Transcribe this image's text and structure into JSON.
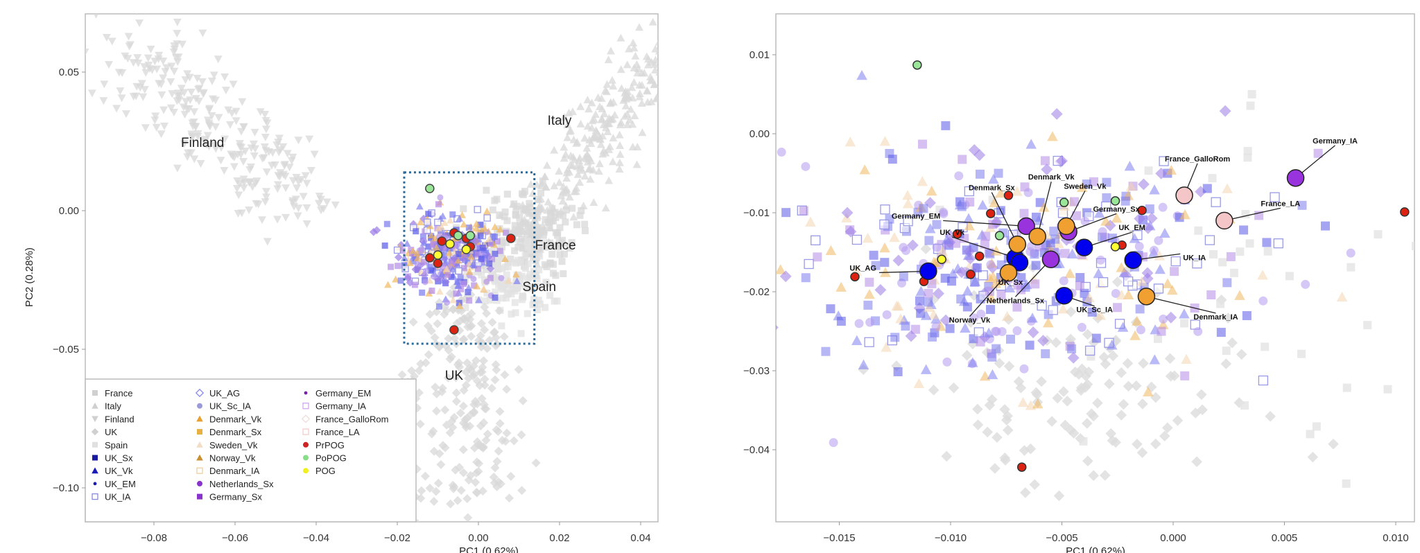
{
  "chart_data": [
    {
      "type": "scatter",
      "panel": "full",
      "xlabel": "PC1 (0.62%)",
      "ylabel": "PC2 (0.28%)",
      "xlim": [
        -0.097,
        0.045
      ],
      "ylim": [
        -0.112,
        0.071
      ],
      "xticks": [
        "-0.08",
        "-0.06",
        "-0.04",
        "-0.02",
        "0.00",
        "0.02",
        "0.04"
      ],
      "xtick_values": [
        -0.08,
        -0.06,
        -0.04,
        -0.02,
        0.0,
        0.02,
        0.04
      ],
      "yticks": [
        "0.05",
        "0.00",
        "-0.05",
        "-0.10"
      ],
      "ytick_values": [
        0.05,
        0.0,
        -0.05,
        -0.1
      ],
      "region_labels": [
        {
          "text": "Finland",
          "x": -0.068,
          "y": 0.023
        },
        {
          "text": "Italy",
          "x": 0.02,
          "y": 0.031
        },
        {
          "text": "France",
          "x": 0.019,
          "y": -0.014
        },
        {
          "text": "Spain",
          "x": 0.015,
          "y": -0.029
        },
        {
          "text": "UK",
          "x": -0.006,
          "y": -0.061
        }
      ],
      "zoom_box": {
        "x": [
          -0.0183,
          0.0138
        ],
        "y": [
          -0.048,
          0.0138
        ]
      },
      "legend": {
        "placement": "bottom-left",
        "entries": [
          {
            "label": "France",
            "shape": "square",
            "color": "#d0d0d0"
          },
          {
            "label": "Italy",
            "shape": "triangle",
            "color": "#d0d0d0"
          },
          {
            "label": "Finland",
            "shape": "triangle-down",
            "color": "#d0d0d0"
          },
          {
            "label": "UK",
            "shape": "diamond",
            "color": "#d0d0d0"
          },
          {
            "label": "Spain",
            "shape": "square",
            "color": "#e0e0e0"
          },
          {
            "label": "UK_Sx",
            "shape": "square",
            "color": "#1a1aa0"
          },
          {
            "label": "UK_Vk",
            "shape": "triangle",
            "color": "#1a1ab4"
          },
          {
            "label": "UK_EM",
            "shape": "dot",
            "color": "#1a1ab4"
          },
          {
            "label": "UK_IA",
            "shape": "open-square",
            "color": "#8888dd"
          },
          {
            "label": "UK_AG",
            "shape": "open-diamond",
            "color": "#8a8aee"
          },
          {
            "label": "UK_Sc_IA",
            "shape": "circle",
            "color": "#9a9ad8"
          },
          {
            "label": "Denmark_Vk",
            "shape": "triangle",
            "color": "#e8a030"
          },
          {
            "label": "Denmark_Sx",
            "shape": "square",
            "color": "#e8b040"
          },
          {
            "label": "Sweden_Vk",
            "shape": "triangle",
            "color": "#f3dcc4"
          },
          {
            "label": "Norway_Vk",
            "shape": "triangle",
            "color": "#c89030"
          },
          {
            "label": "Denmark_IA",
            "shape": "open-square",
            "color": "#efcfa0"
          },
          {
            "label": "Netherlands_Sx",
            "shape": "circle",
            "color": "#8833cc"
          },
          {
            "label": "Germany_Sx",
            "shape": "square",
            "color": "#8833cc"
          },
          {
            "label": "Germany_EM",
            "shape": "dot",
            "color": "#7722aa"
          },
          {
            "label": "Germany_IA",
            "shape": "open-square",
            "color": "#d3a8ee"
          },
          {
            "label": "France_GalloRom",
            "shape": "open-diamond",
            "color": "#f0dcdc"
          },
          {
            "label": "France_LA",
            "shape": "open-square",
            "color": "#f3cccc"
          },
          {
            "label": "PrPOG",
            "shape": "circle",
            "color": "#cc2222"
          },
          {
            "label": "PoPOG",
            "shape": "circle",
            "color": "#88dd88"
          },
          {
            "label": "POG",
            "shape": "circle",
            "color": "#f0f020"
          }
        ]
      },
      "highlight_points": {
        "PrPOG": [
          [
            -0.012,
            -0.017
          ],
          [
            -0.009,
            -0.011
          ],
          [
            -0.006,
            -0.008
          ],
          [
            -0.003,
            -0.01
          ],
          [
            0.008,
            -0.01
          ],
          [
            -0.006,
            -0.043
          ],
          [
            -0.01,
            -0.019
          ],
          [
            -0.002,
            -0.013
          ]
        ],
        "PoPOG": [
          [
            -0.012,
            0.008
          ],
          [
            -0.005,
            -0.009
          ],
          [
            -0.002,
            -0.009
          ]
        ],
        "POG": [
          [
            -0.01,
            -0.016
          ],
          [
            -0.003,
            -0.014
          ],
          [
            -0.007,
            -0.012
          ]
        ]
      }
    },
    {
      "type": "scatter",
      "panel": "zoom",
      "xlabel": "PC1 (0.62%)",
      "ylabel": "",
      "xlim": [
        -0.0178,
        0.0108
      ],
      "ylim": [
        -0.049,
        0.0152
      ],
      "xticks": [
        "-0.015",
        "-0.010",
        "-0.005",
        "0.000",
        "0.005",
        "0.010"
      ],
      "xtick_values": [
        -0.015,
        -0.01,
        -0.005,
        0.0,
        0.005,
        0.01
      ],
      "yticks": [
        "0.01",
        "0.00",
        "-0.01",
        "-0.02",
        "-0.03",
        "-0.04"
      ],
      "ytick_values": [
        0.01,
        0.0,
        -0.01,
        -0.02,
        -0.03,
        -0.04
      ],
      "group_means": [
        {
          "label": "UK_AG",
          "x": -0.011,
          "y": -0.0174,
          "color": "#0000ee"
        },
        {
          "label": "UK_Vk",
          "x": -0.0071,
          "y": -0.0157,
          "color": "#0000ee"
        },
        {
          "label": "UK_Sx",
          "x": -0.0069,
          "y": -0.0163,
          "color": "#0000ee"
        },
        {
          "label": "Norway_Vk",
          "x": -0.0074,
          "y": -0.0176,
          "color": "#f0a030"
        },
        {
          "label": "Denmark_Sx",
          "x": -0.007,
          "y": -0.014,
          "color": "#f0a030"
        },
        {
          "label": "Germany_EM",
          "x": -0.0066,
          "y": -0.0117,
          "color": "#9933dd"
        },
        {
          "label": "Denmark_Vk",
          "x": -0.0061,
          "y": -0.013,
          "color": "#f0a030"
        },
        {
          "label": "Netherlands_Sx",
          "x": -0.0055,
          "y": -0.0159,
          "color": "#9933dd"
        },
        {
          "label": "Germany_Sx",
          "x": -0.0047,
          "y": -0.0124,
          "color": "#9933dd"
        },
        {
          "label": "Sweden_Vk",
          "x": -0.0048,
          "y": -0.0117,
          "color": "#f0a030"
        },
        {
          "label": "UK_EM",
          "x": -0.004,
          "y": -0.0144,
          "color": "#0000ee"
        },
        {
          "label": "UK_Sc_IA",
          "x": -0.0049,
          "y": -0.0205,
          "color": "#0000ee"
        },
        {
          "label": "UK_IA",
          "x": -0.0018,
          "y": -0.016,
          "color": "#0000ee"
        },
        {
          "label": "Denmark_IA",
          "x": -0.0012,
          "y": -0.0206,
          "color": "#f0a030"
        },
        {
          "label": "France_GalloRom",
          "x": 0.0005,
          "y": -0.0078,
          "color": "#f5c6c8"
        },
        {
          "label": "France_LA",
          "x": 0.0023,
          "y": -0.011,
          "color": "#f5c6c8"
        },
        {
          "label": "Germany_IA",
          "x": 0.0055,
          "y": -0.0056,
          "color": "#9933dd"
        }
      ],
      "highlight_points": {
        "PrPOG": [
          [
            -0.0143,
            -0.0181
          ],
          [
            -0.0112,
            -0.0187
          ],
          [
            -0.0091,
            -0.0178
          ],
          [
            -0.0087,
            -0.0155
          ],
          [
            -0.0097,
            -0.0127
          ],
          [
            -0.0082,
            -0.0101
          ],
          [
            -0.0074,
            -0.0078
          ],
          [
            -0.0023,
            -0.0141
          ],
          [
            -0.0014,
            -0.0097
          ],
          [
            0.0104,
            -0.0099
          ],
          [
            -0.0068,
            -0.0422
          ]
        ],
        "PoPOG": [
          [
            -0.0115,
            0.0087
          ],
          [
            -0.0049,
            -0.0087
          ],
          [
            -0.0026,
            -0.0085
          ],
          [
            -0.0078,
            -0.0129
          ]
        ],
        "POG": [
          [
            -0.0104,
            -0.0159
          ],
          [
            -0.0026,
            -0.0143
          ]
        ]
      }
    }
  ]
}
